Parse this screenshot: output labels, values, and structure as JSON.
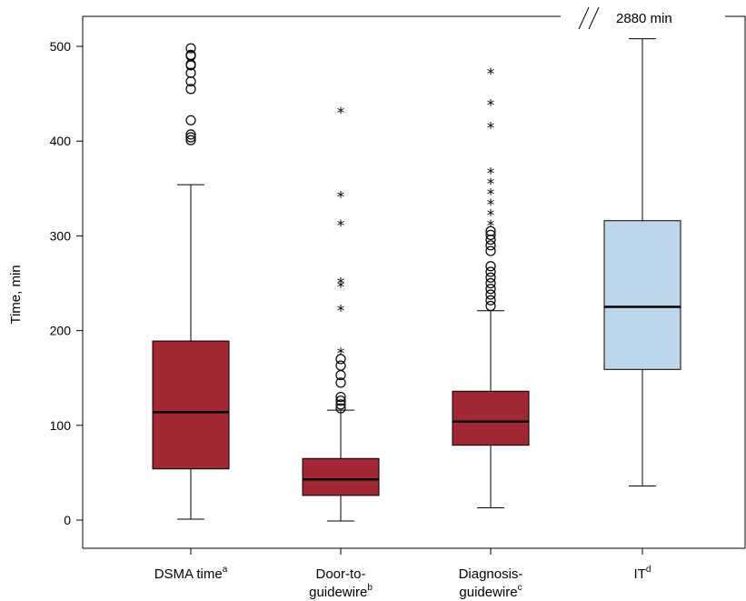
{
  "chart_data": {
    "type": "box",
    "ylabel": "Time, min",
    "ylim": [
      0,
      500
    ],
    "yticks": [
      0,
      100,
      200,
      300,
      400,
      500
    ],
    "yticks_labels": [
      "0",
      "100",
      "200",
      "300",
      "400",
      "500"
    ],
    "axis_break_label": "2880 min",
    "axis_break_symbol": "//",
    "series": [
      {
        "label": "DSMA time",
        "sup": "a",
        "label_lines": [
          "DSMA time"
        ],
        "color": "#a12832",
        "whisker_low": 1,
        "q1": 54,
        "median": 114,
        "q3": 189,
        "whisker_high": 354,
        "outliers_circle": [
          401,
          404,
          407,
          422,
          455,
          463,
          472,
          480,
          481,
          490,
          491,
          498
        ],
        "outliers_star": []
      },
      {
        "label": "Door-to-guidewire",
        "sup": "b",
        "label_lines": [
          "Door-to-",
          "guidewire"
        ],
        "color": "#a12832",
        "whisker_low": -1,
        "q1": 26,
        "median": 43,
        "q3": 65,
        "whisker_high": 116,
        "outliers_circle": [
          118,
          122,
          126,
          130,
          145,
          153,
          163,
          170
        ],
        "outliers_star": [
          180,
          225,
          250,
          254,
          315,
          345,
          434
        ]
      },
      {
        "label": "Diagnosis-guidewire",
        "sup": "c",
        "label_lines": [
          "Diagnosis-",
          "guidewire"
        ],
        "color": "#a12832",
        "whisker_low": 13,
        "q1": 79,
        "median": 104,
        "q3": 136,
        "whisker_high": 221,
        "outliers_circle": [
          226,
          232,
          238,
          244,
          250,
          256,
          262,
          268,
          284,
          290,
          296,
          301,
          305
        ],
        "outliers_star": [
          315,
          326,
          337,
          348,
          359,
          370,
          418,
          442,
          475
        ]
      },
      {
        "label": "IT",
        "sup": "d",
        "label_lines": [
          "IT"
        ],
        "color": "#bdd7ea",
        "whisker_low": 36,
        "q1": 159,
        "median": 225,
        "q3": 316,
        "whisker_high": 508,
        "outliers_circle": [],
        "outliers_star": []
      }
    ]
  }
}
